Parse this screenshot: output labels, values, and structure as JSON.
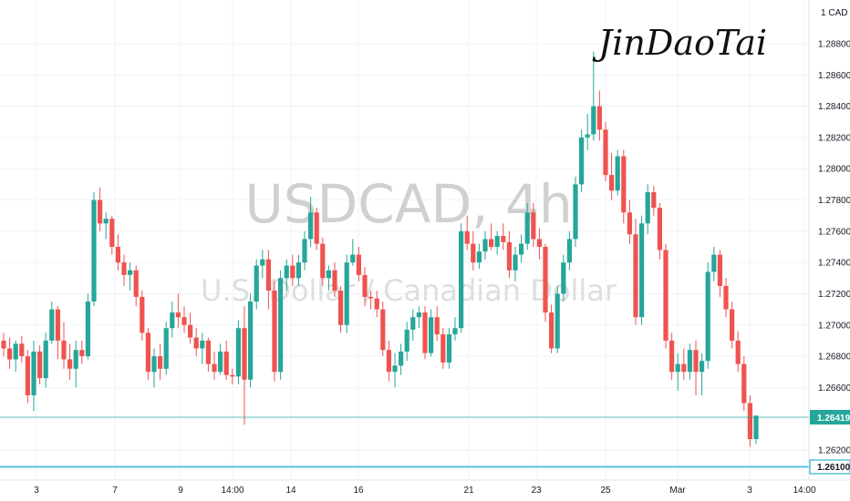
{
  "currency_label": "CAD",
  "signature": "JinDaoTai",
  "watermark": {
    "symbol_line": "USDCAD, 4h",
    "description": "U.S. Dollar / Canadian Dollar"
  },
  "colors": {
    "up": "#26a69a",
    "down": "#ef5350",
    "last_price_line": "#26a69a",
    "support_line": "#5bc0d6",
    "grid": "#f0f3fa"
  },
  "chart_data": {
    "type": "candlestick",
    "symbol": "USDCAD",
    "timeframe": "4h",
    "ylim": [
      1.26,
      1.29
    ],
    "y_ticks": [
      "1.26200",
      "1.26400",
      "1.26600",
      "1.26800",
      "1.27000",
      "1.27200",
      "1.27400",
      "1.27600",
      "1.27800",
      "1.28000",
      "1.28200",
      "1.28400",
      "1.28600",
      "1.28800"
    ],
    "x_ticks": [
      "3",
      "7",
      "9",
      "14:00",
      "14",
      "16",
      "21",
      "23",
      "25",
      "Mar",
      "3",
      "14:00"
    ],
    "last_price": "1.26419",
    "horizontal_level": "1.26100",
    "candles": [
      [
        1.269,
        1.2695,
        1.268,
        1.2685
      ],
      [
        1.2685,
        1.2692,
        1.2672,
        1.2678
      ],
      [
        1.2678,
        1.269,
        1.267,
        1.2688
      ],
      [
        1.2688,
        1.2693,
        1.2676,
        1.268
      ],
      [
        1.268,
        1.2684,
        1.265,
        1.2655
      ],
      [
        1.2655,
        1.269,
        1.2645,
        1.2683
      ],
      [
        1.2683,
        1.2687,
        1.2662,
        1.2666
      ],
      [
        1.2666,
        1.2695,
        1.266,
        1.269
      ],
      [
        1.269,
        1.2715,
        1.2688,
        1.271
      ],
      [
        1.271,
        1.2712,
        1.2678,
        1.269
      ],
      [
        1.269,
        1.2702,
        1.2672,
        1.2678
      ],
      [
        1.2678,
        1.2688,
        1.2665,
        1.2672
      ],
      [
        1.2672,
        1.269,
        1.266,
        1.2684
      ],
      [
        1.2684,
        1.269,
        1.2675,
        1.268
      ],
      [
        1.268,
        1.272,
        1.2678,
        1.2715
      ],
      [
        1.2715,
        1.2785,
        1.2712,
        1.278
      ],
      [
        1.278,
        1.2788,
        1.276,
        1.2765
      ],
      [
        1.2765,
        1.2772,
        1.2755,
        1.2768
      ],
      [
        1.2768,
        1.277,
        1.2745,
        1.275
      ],
      [
        1.275,
        1.2758,
        1.2735,
        1.274
      ],
      [
        1.274,
        1.2745,
        1.2725,
        1.2732
      ],
      [
        1.2732,
        1.274,
        1.2722,
        1.2735
      ],
      [
        1.2735,
        1.2738,
        1.2712,
        1.2718
      ],
      [
        1.2718,
        1.2722,
        1.269,
        1.2695
      ],
      [
        1.2695,
        1.2698,
        1.2665,
        1.267
      ],
      [
        1.267,
        1.2685,
        1.266,
        1.268
      ],
      [
        1.268,
        1.2688,
        1.2665,
        1.2672
      ],
      [
        1.2672,
        1.2702,
        1.2668,
        1.2698
      ],
      [
        1.2698,
        1.2715,
        1.2692,
        1.2708
      ],
      [
        1.2708,
        1.272,
        1.2698,
        1.2705
      ],
      [
        1.2705,
        1.2712,
        1.2695,
        1.27
      ],
      [
        1.27,
        1.2708,
        1.2688,
        1.2692
      ],
      [
        1.2692,
        1.2698,
        1.268,
        1.2685
      ],
      [
        1.2685,
        1.2695,
        1.2675,
        1.269
      ],
      [
        1.269,
        1.2692,
        1.267,
        1.2675
      ],
      [
        1.2675,
        1.2683,
        1.2665,
        1.267
      ],
      [
        1.267,
        1.2688,
        1.2668,
        1.2683
      ],
      [
        1.2683,
        1.269,
        1.2665,
        1.2668
      ],
      [
        1.2668,
        1.2672,
        1.2662,
        1.2667
      ],
      [
        1.2667,
        1.2703,
        1.2662,
        1.2698
      ],
      [
        1.2698,
        1.2712,
        1.2636,
        1.2665
      ],
      [
        1.2665,
        1.272,
        1.266,
        1.2715
      ],
      [
        1.2715,
        1.2742,
        1.271,
        1.2738
      ],
      [
        1.2738,
        1.2748,
        1.273,
        1.2742
      ],
      [
        1.2742,
        1.2748,
        1.271,
        1.2722
      ],
      [
        1.2722,
        1.2728,
        1.2664,
        1.267
      ],
      [
        1.267,
        1.2735,
        1.2665,
        1.273
      ],
      [
        1.273,
        1.2742,
        1.2722,
        1.2738
      ],
      [
        1.2738,
        1.2745,
        1.2725,
        1.273
      ],
      [
        1.273,
        1.2745,
        1.2725,
        1.274
      ],
      [
        1.274,
        1.276,
        1.2735,
        1.2755
      ],
      [
        1.2755,
        1.2782,
        1.275,
        1.2772
      ],
      [
        1.2772,
        1.2775,
        1.2748,
        1.2752
      ],
      [
        1.2752,
        1.2756,
        1.2725,
        1.273
      ],
      [
        1.273,
        1.2738,
        1.2722,
        1.2735
      ],
      [
        1.2735,
        1.274,
        1.2718,
        1.2722
      ],
      [
        1.2722,
        1.2725,
        1.2695,
        1.27
      ],
      [
        1.27,
        1.2745,
        1.2695,
        1.274
      ],
      [
        1.274,
        1.2755,
        1.2738,
        1.2745
      ],
      [
        1.2745,
        1.275,
        1.2728,
        1.2732
      ],
      [
        1.2732,
        1.2737,
        1.2712,
        1.2718
      ],
      [
        1.2718,
        1.2722,
        1.271,
        1.2717
      ],
      [
        1.2717,
        1.2722,
        1.2705,
        1.271
      ],
      [
        1.271,
        1.2715,
        1.268,
        1.2684
      ],
      [
        1.2684,
        1.269,
        1.2664,
        1.267
      ],
      [
        1.267,
        1.2682,
        1.266,
        1.2674
      ],
      [
        1.2674,
        1.2688,
        1.2668,
        1.2683
      ],
      [
        1.2683,
        1.2702,
        1.2677,
        1.2697
      ],
      [
        1.2697,
        1.271,
        1.269,
        1.2705
      ],
      [
        1.2705,
        1.2712,
        1.2698,
        1.2708
      ],
      [
        1.2708,
        1.2712,
        1.2678,
        1.2682
      ],
      [
        1.2682,
        1.271,
        1.268,
        1.2705
      ],
      [
        1.2705,
        1.2712,
        1.269,
        1.2694
      ],
      [
        1.2694,
        1.2698,
        1.2672,
        1.2676
      ],
      [
        1.2676,
        1.2698,
        1.2672,
        1.2694
      ],
      [
        1.2694,
        1.2705,
        1.269,
        1.2698
      ],
      [
        1.2698,
        1.2765,
        1.2695,
        1.276
      ],
      [
        1.276,
        1.277,
        1.2748,
        1.2752
      ],
      [
        1.2752,
        1.276,
        1.2735,
        1.274
      ],
      [
        1.274,
        1.2752,
        1.2736,
        1.2747
      ],
      [
        1.2747,
        1.276,
        1.2742,
        1.2755
      ],
      [
        1.2755,
        1.2765,
        1.2748,
        1.275
      ],
      [
        1.275,
        1.276,
        1.2745,
        1.2757
      ],
      [
        1.2757,
        1.2765,
        1.2748,
        1.2753
      ],
      [
        1.2753,
        1.276,
        1.273,
        1.2735
      ],
      [
        1.2735,
        1.275,
        1.2728,
        1.2745
      ],
      [
        1.2745,
        1.2758,
        1.274,
        1.2752
      ],
      [
        1.2752,
        1.2778,
        1.2748,
        1.2772
      ],
      [
        1.2772,
        1.2778,
        1.275,
        1.2755
      ],
      [
        1.2755,
        1.2762,
        1.2742,
        1.275
      ],
      [
        1.275,
        1.2752,
        1.2702,
        1.2708
      ],
      [
        1.2708,
        1.2713,
        1.2682,
        1.2685
      ],
      [
        1.2685,
        1.2725,
        1.2682,
        1.272
      ],
      [
        1.272,
        1.2745,
        1.2715,
        1.274
      ],
      [
        1.274,
        1.276,
        1.2735,
        1.2755
      ],
      [
        1.2755,
        1.2795,
        1.275,
        1.279
      ],
      [
        1.279,
        1.2825,
        1.2785,
        1.282
      ],
      [
        1.282,
        1.2835,
        1.2812,
        1.2822
      ],
      [
        1.2822,
        1.2875,
        1.2818,
        1.284
      ],
      [
        1.284,
        1.285,
        1.2818,
        1.2825
      ],
      [
        1.2825,
        1.283,
        1.2792,
        1.2796
      ],
      [
        1.2796,
        1.281,
        1.278,
        1.2786
      ],
      [
        1.2786,
        1.2812,
        1.2783,
        1.2808
      ],
      [
        1.2808,
        1.2812,
        1.2765,
        1.2772
      ],
      [
        1.2772,
        1.278,
        1.2752,
        1.2758
      ],
      [
        1.2758,
        1.2768,
        1.27,
        1.2705
      ],
      [
        1.2705,
        1.277,
        1.27,
        1.2765
      ],
      [
        1.2765,
        1.279,
        1.2758,
        1.2785
      ],
      [
        1.2785,
        1.2789,
        1.277,
        1.2775
      ],
      [
        1.2775,
        1.2778,
        1.2742,
        1.2748
      ],
      [
        1.2748,
        1.2752,
        1.2685,
        1.269
      ],
      [
        1.269,
        1.2695,
        1.2665,
        1.267
      ],
      [
        1.267,
        1.2682,
        1.2658,
        1.2675
      ],
      [
        1.2675,
        1.2685,
        1.2665,
        1.267
      ],
      [
        1.267,
        1.2688,
        1.2665,
        1.2684
      ],
      [
        1.2684,
        1.269,
        1.2655,
        1.267
      ],
      [
        1.267,
        1.2682,
        1.2655,
        1.2677
      ],
      [
        1.2677,
        1.274,
        1.2672,
        1.2734
      ],
      [
        1.2734,
        1.275,
        1.2728,
        1.2745
      ],
      [
        1.2745,
        1.2748,
        1.2718,
        1.2725
      ],
      [
        1.2725,
        1.273,
        1.2705,
        1.271
      ],
      [
        1.271,
        1.2715,
        1.2685,
        1.269
      ],
      [
        1.269,
        1.2696,
        1.267,
        1.2675
      ],
      [
        1.2675,
        1.268,
        1.2645,
        1.265
      ],
      [
        1.265,
        1.2655,
        1.2622,
        1.2627
      ],
      [
        1.2627,
        1.2642,
        1.2624,
        1.2642
      ]
    ]
  }
}
